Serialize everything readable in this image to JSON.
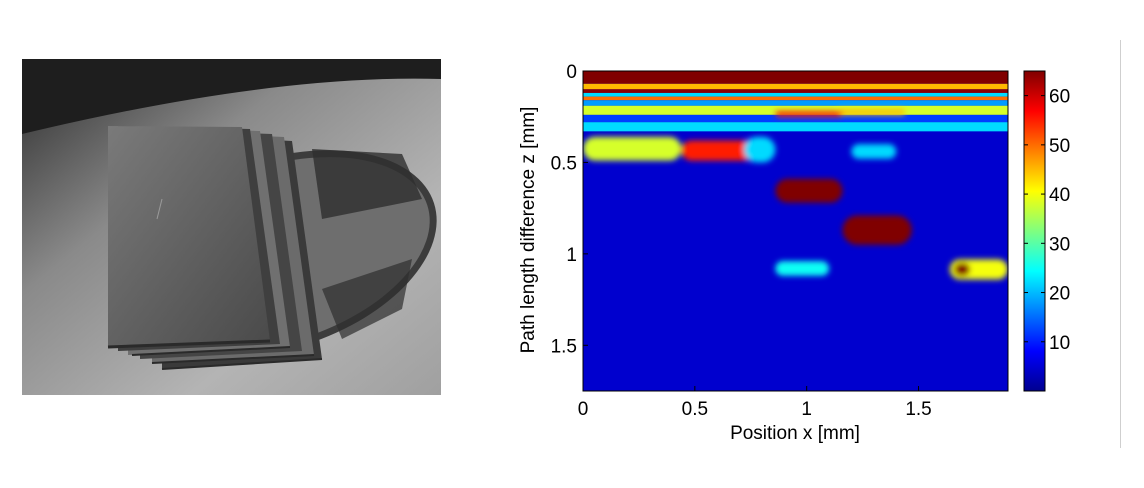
{
  "figure": {
    "photo_alt": "photograph of stacked thin plates on a metal disc"
  },
  "chart_data": {
    "type": "heatmap",
    "title": "",
    "xlabel": "Position x [mm]",
    "ylabel": "Path length difference z [mm]",
    "xlim": [
      0,
      1.9
    ],
    "ylim": [
      0,
      1.75
    ],
    "y_inverted": true,
    "xticks": [
      0,
      0.5,
      1,
      1.5
    ],
    "xtick_labels": [
      "0",
      "0.5",
      "1",
      "1.5"
    ],
    "yticks": [
      0,
      0.5,
      1,
      1.5
    ],
    "ytick_labels": [
      "0",
      "0.5",
      "1",
      "1.5"
    ],
    "colorbar": {
      "colormap": "jet",
      "range": [
        0,
        65
      ],
      "ticks": [
        10,
        20,
        30,
        40,
        50,
        60
      ],
      "tick_labels": [
        "10",
        "20",
        "30",
        "40",
        "50",
        "60"
      ]
    },
    "background_level": 5,
    "bands": [
      {
        "z": [
          0.0,
          0.07
        ],
        "value": 65
      },
      {
        "z": [
          0.07,
          0.1
        ],
        "value": 45
      },
      {
        "z": [
          0.1,
          0.12
        ],
        "value": 64
      },
      {
        "z": [
          0.12,
          0.14
        ],
        "value": 22
      },
      {
        "z": [
          0.14,
          0.16
        ],
        "value": 50
      },
      {
        "z": [
          0.16,
          0.19
        ],
        "value": 18
      },
      {
        "z": [
          0.19,
          0.24
        ],
        "value": 38
      },
      {
        "z": [
          0.24,
          0.28
        ],
        "value": 12
      },
      {
        "z": [
          0.28,
          0.33
        ],
        "value": 22
      }
    ],
    "hotspots": [
      {
        "x": [
          0.0,
          0.44
        ],
        "z": [
          0.36,
          0.49
        ],
        "value": 38
      },
      {
        "x": [
          0.44,
          0.77
        ],
        "z": [
          0.38,
          0.49
        ],
        "value": 55
      },
      {
        "x": [
          0.72,
          0.86
        ],
        "z": [
          0.36,
          0.5
        ],
        "value": 22
      },
      {
        "x": [
          0.86,
          1.16
        ],
        "z": [
          0.59,
          0.72
        ],
        "value": 65
      },
      {
        "x": [
          1.16,
          1.47
        ],
        "z": [
          0.79,
          0.95
        ],
        "value": 65
      },
      {
        "x": [
          1.64,
          1.9
        ],
        "z": [
          1.03,
          1.14
        ],
        "value": 40
      },
      {
        "x": [
          1.66,
          1.73
        ],
        "z": [
          1.05,
          1.12
        ],
        "value": 65
      },
      {
        "x": [
          0.86,
          1.1
        ],
        "z": [
          1.04,
          1.12
        ],
        "value": 25
      },
      {
        "x": [
          1.14,
          1.44
        ],
        "z": [
          0.21,
          0.24
        ],
        "value": 45
      },
      {
        "x": [
          1.2,
          1.4
        ],
        "z": [
          0.4,
          0.48
        ],
        "value": 22
      },
      {
        "x": [
          0.86,
          1.16
        ],
        "z": [
          0.22,
          0.25
        ],
        "value": 55
      }
    ]
  }
}
